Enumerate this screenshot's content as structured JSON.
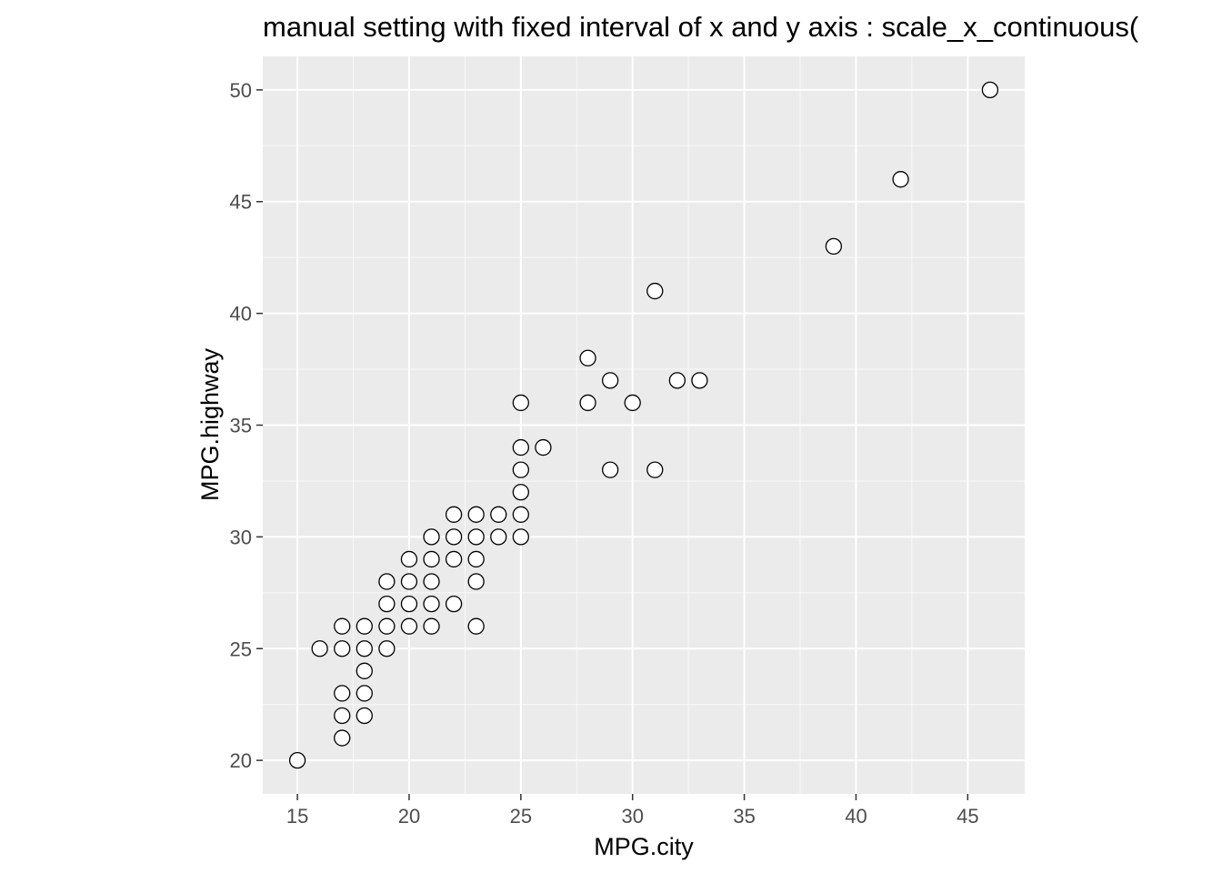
{
  "chart_data": {
    "type": "scatter",
    "title": "manual setting with fixed interval of x and y axis : scale_x_continuous(",
    "xlabel": "MPG.city",
    "ylabel": "MPG.highway",
    "xlim": [
      13.45,
      47.55
    ],
    "ylim": [
      18.5,
      51.5
    ],
    "x_ticks": [
      15,
      20,
      25,
      30,
      35,
      40,
      45
    ],
    "y_ticks": [
      20,
      25,
      30,
      35,
      40,
      45,
      50
    ],
    "grid": true,
    "point_style": "open-circle",
    "points": [
      [
        15,
        20
      ],
      [
        16,
        25
      ],
      [
        17,
        21
      ],
      [
        17,
        22
      ],
      [
        17,
        23
      ],
      [
        17,
        25
      ],
      [
        17,
        26
      ],
      [
        18,
        22
      ],
      [
        18,
        23
      ],
      [
        18,
        24
      ],
      [
        18,
        25
      ],
      [
        18,
        26
      ],
      [
        19,
        25
      ],
      [
        19,
        26
      ],
      [
        19,
        27
      ],
      [
        19,
        28
      ],
      [
        20,
        26
      ],
      [
        20,
        27
      ],
      [
        20,
        28
      ],
      [
        20,
        29
      ],
      [
        21,
        26
      ],
      [
        21,
        27
      ],
      [
        21,
        28
      ],
      [
        21,
        29
      ],
      [
        21,
        30
      ],
      [
        22,
        27
      ],
      [
        22,
        29
      ],
      [
        22,
        30
      ],
      [
        22,
        31
      ],
      [
        23,
        26
      ],
      [
        23,
        28
      ],
      [
        23,
        29
      ],
      [
        23,
        30
      ],
      [
        23,
        31
      ],
      [
        24,
        30
      ],
      [
        24,
        31
      ],
      [
        25,
        30
      ],
      [
        25,
        31
      ],
      [
        25,
        32
      ],
      [
        25,
        33
      ],
      [
        25,
        34
      ],
      [
        25,
        36
      ],
      [
        26,
        34
      ],
      [
        28,
        36
      ],
      [
        28,
        38
      ],
      [
        29,
        33
      ],
      [
        29,
        37
      ],
      [
        30,
        36
      ],
      [
        31,
        33
      ],
      [
        31,
        41
      ],
      [
        32,
        37
      ],
      [
        33,
        37
      ],
      [
        39,
        43
      ],
      [
        42,
        46
      ],
      [
        46,
        50
      ]
    ]
  }
}
